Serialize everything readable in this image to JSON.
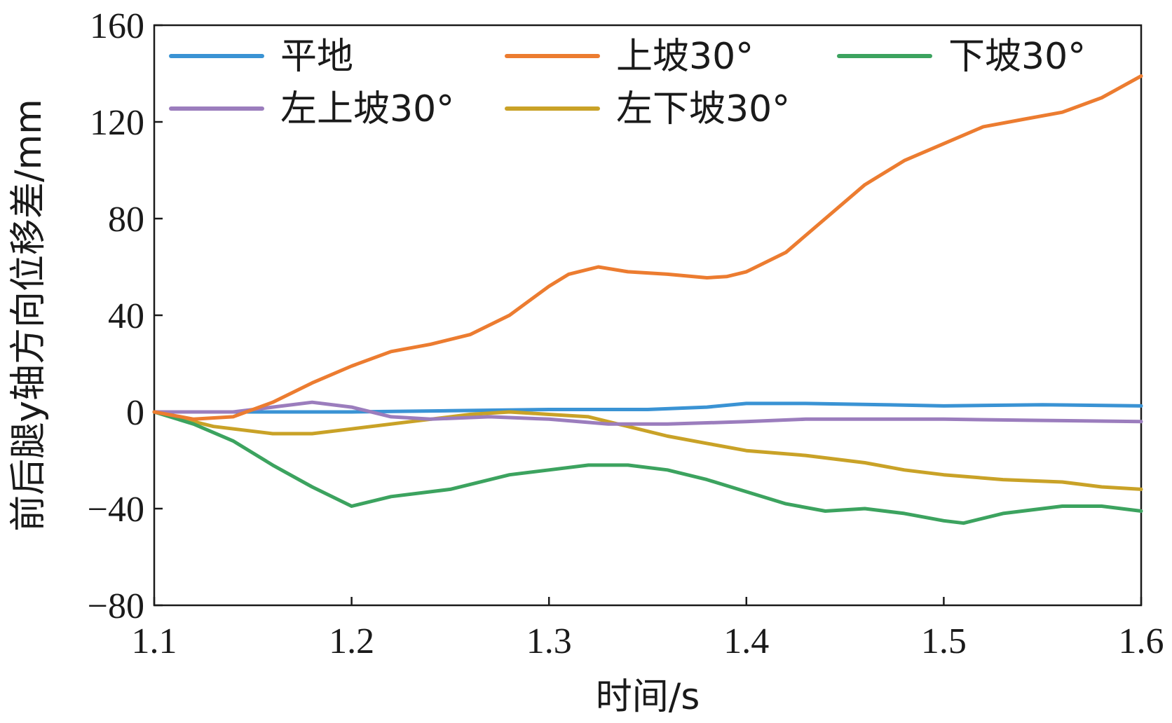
{
  "chart_data": {
    "type": "line",
    "xlabel": "时间/s",
    "ylabel": "前后腿y轴方向位移差/mm",
    "xlim": [
      1.1,
      1.6
    ],
    "ylim": [
      -80,
      160
    ],
    "x_ticks": [
      "1.1",
      "1.2",
      "1.3",
      "1.4",
      "1.5",
      "1.6"
    ],
    "x_tick_values": [
      1.1,
      1.2,
      1.3,
      1.4,
      1.5,
      1.6
    ],
    "y_ticks": [
      "160",
      "120",
      "80",
      "40",
      "0",
      "−40",
      "−80"
    ],
    "y_tick_values": [
      160,
      120,
      80,
      40,
      0,
      -40,
      -80
    ],
    "legend_position": "top",
    "grid": false,
    "series": [
      {
        "name": "平地",
        "color": "#3a93d4",
        "points": [
          [
            1.1,
            0
          ],
          [
            1.15,
            0
          ],
          [
            1.2,
            0
          ],
          [
            1.25,
            0.5
          ],
          [
            1.3,
            1
          ],
          [
            1.35,
            1
          ],
          [
            1.38,
            2
          ],
          [
            1.4,
            3.5
          ],
          [
            1.43,
            3.5
          ],
          [
            1.47,
            3
          ],
          [
            1.5,
            2.5
          ],
          [
            1.55,
            3
          ],
          [
            1.6,
            2.5
          ]
        ]
      },
      {
        "name": "上坡30°",
        "color": "#ec7c30",
        "points": [
          [
            1.1,
            0
          ],
          [
            1.12,
            -3
          ],
          [
            1.14,
            -2
          ],
          [
            1.16,
            4
          ],
          [
            1.18,
            12
          ],
          [
            1.2,
            19
          ],
          [
            1.22,
            25
          ],
          [
            1.24,
            28
          ],
          [
            1.26,
            32
          ],
          [
            1.28,
            40
          ],
          [
            1.3,
            52
          ],
          [
            1.31,
            57
          ],
          [
            1.325,
            60
          ],
          [
            1.34,
            58
          ],
          [
            1.36,
            57
          ],
          [
            1.38,
            55.5
          ],
          [
            1.39,
            56
          ],
          [
            1.4,
            58
          ],
          [
            1.42,
            66
          ],
          [
            1.44,
            80
          ],
          [
            1.46,
            94
          ],
          [
            1.48,
            104
          ],
          [
            1.5,
            111
          ],
          [
            1.52,
            118
          ],
          [
            1.54,
            121
          ],
          [
            1.56,
            124
          ],
          [
            1.58,
            130
          ],
          [
            1.6,
            139
          ]
        ]
      },
      {
        "name": "下坡30°",
        "color": "#3ca35f",
        "points": [
          [
            1.1,
            0
          ],
          [
            1.12,
            -5
          ],
          [
            1.14,
            -12
          ],
          [
            1.16,
            -22
          ],
          [
            1.18,
            -31
          ],
          [
            1.2,
            -39
          ],
          [
            1.22,
            -35
          ],
          [
            1.25,
            -32
          ],
          [
            1.28,
            -26
          ],
          [
            1.3,
            -24
          ],
          [
            1.32,
            -22
          ],
          [
            1.34,
            -22
          ],
          [
            1.36,
            -24
          ],
          [
            1.38,
            -28
          ],
          [
            1.4,
            -33
          ],
          [
            1.42,
            -38
          ],
          [
            1.44,
            -41
          ],
          [
            1.46,
            -40
          ],
          [
            1.48,
            -42
          ],
          [
            1.5,
            -45
          ],
          [
            1.51,
            -46
          ],
          [
            1.53,
            -42
          ],
          [
            1.56,
            -39
          ],
          [
            1.58,
            -39
          ],
          [
            1.6,
            -41
          ]
        ]
      },
      {
        "name": "左上坡30°",
        "color": "#9b7dbd",
        "points": [
          [
            1.1,
            0
          ],
          [
            1.14,
            0
          ],
          [
            1.16,
            2
          ],
          [
            1.18,
            4
          ],
          [
            1.2,
            2
          ],
          [
            1.22,
            -2
          ],
          [
            1.24,
            -3
          ],
          [
            1.27,
            -2
          ],
          [
            1.3,
            -3
          ],
          [
            1.33,
            -5
          ],
          [
            1.36,
            -5
          ],
          [
            1.4,
            -4
          ],
          [
            1.43,
            -3
          ],
          [
            1.47,
            -3
          ],
          [
            1.5,
            -3
          ],
          [
            1.55,
            -3.5
          ],
          [
            1.6,
            -4
          ]
        ]
      },
      {
        "name": "左下坡30°",
        "color": "#c9a227",
        "points": [
          [
            1.1,
            0
          ],
          [
            1.13,
            -6
          ],
          [
            1.16,
            -9
          ],
          [
            1.18,
            -9
          ],
          [
            1.2,
            -7
          ],
          [
            1.23,
            -4
          ],
          [
            1.26,
            -1
          ],
          [
            1.28,
            0
          ],
          [
            1.3,
            -1
          ],
          [
            1.32,
            -2
          ],
          [
            1.34,
            -6
          ],
          [
            1.36,
            -10
          ],
          [
            1.38,
            -13
          ],
          [
            1.4,
            -16
          ],
          [
            1.43,
            -18
          ],
          [
            1.46,
            -21
          ],
          [
            1.48,
            -24
          ],
          [
            1.5,
            -26
          ],
          [
            1.53,
            -28
          ],
          [
            1.56,
            -29
          ],
          [
            1.58,
            -31
          ],
          [
            1.6,
            -32
          ]
        ]
      }
    ]
  }
}
